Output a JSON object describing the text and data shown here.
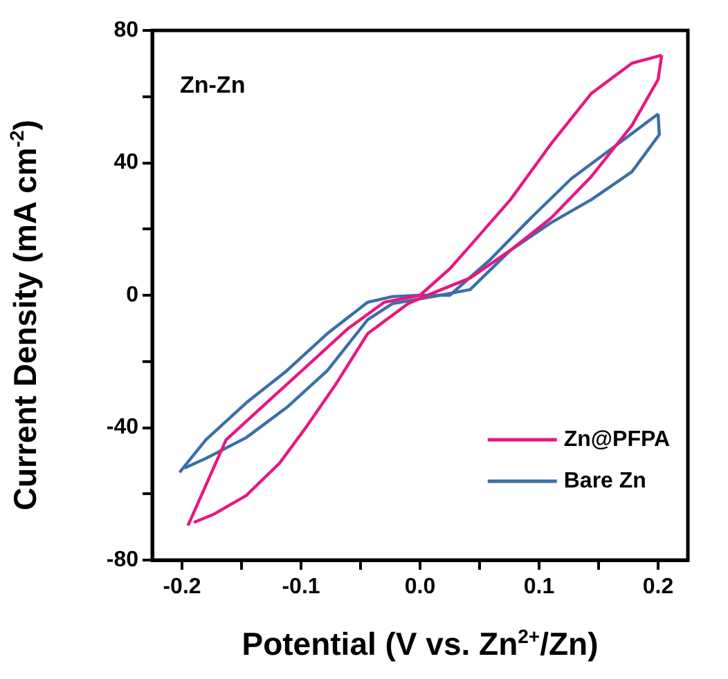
{
  "chart_data": {
    "type": "line",
    "xlabel": "Potential (V vs. Zn$^{2+}$/Zn)",
    "ylabel": "Current Density (mA cm$^{-2}$)",
    "annotations": [
      "Zn-Zn"
    ],
    "xlim": [
      -0.225,
      0.225
    ],
    "ylim": [
      -80,
      80
    ],
    "xticks": [
      -0.2,
      {
        "value": -0.15,
        "label": null
      },
      -0.1,
      {
        "value": -0.05,
        "label": null
      },
      {
        "value": 0,
        "label": "0.0"
      },
      {
        "value": 0.05,
        "label": null
      },
      0.1,
      {
        "value": 0.15,
        "label": null
      },
      0.2
    ],
    "yticks": [
      -80,
      {
        "value": -60,
        "label": null
      },
      -40,
      {
        "value": -20,
        "label": null
      },
      0,
      {
        "value": 20,
        "label": null
      },
      40,
      {
        "value": 60,
        "label": null
      },
      80
    ],
    "grid": false,
    "legend": "bottom right",
    "marker": "none",
    "line_style": "solid",
    "series": [
      {
        "name": "Zn@PFPA",
        "color": "#e8177f",
        "x": [
          -0.195,
          -0.163,
          -0.129,
          -0.095,
          -0.061,
          -0.03,
          0,
          0.025,
          0.042,
          0.076,
          0.11,
          0.144,
          0.178,
          0.203
        ],
        "values": [
          -69.6,
          -43.7,
          -32.5,
          -21.4,
          -10.2,
          -2.1,
          0,
          8,
          14.9,
          28.9,
          45.7,
          61,
          70.1,
          72.5
        ]
      },
      {
        "color": "#e8177f",
        "x": [
          0.203,
          0.2,
          0.178,
          0.144,
          0.11,
          0.076,
          0.042,
          0.011,
          -0.01,
          -0.044,
          -0.071,
          -0.095,
          -0.118,
          -0.146,
          -0.173,
          -0.19
        ],
        "values": [
          72.5,
          65.2,
          51.3,
          35.9,
          23.3,
          13.6,
          5.2,
          0.7,
          -2.5,
          -11.6,
          -27,
          -39.5,
          -50.7,
          -60.5,
          -66.1,
          -68.6
        ]
      },
      {
        "name": "Bare Zn",
        "color": "#3a6fa8",
        "x": [
          -0.202,
          -0.18,
          -0.146,
          -0.112,
          -0.078,
          -0.044,
          -0.023,
          0,
          0.025,
          0.059,
          0.093,
          0.127,
          0.161,
          0.2
        ],
        "values": [
          -53.5,
          -43.7,
          -32.5,
          -22.8,
          -11.6,
          -2.1,
          -0.4,
          0,
          0,
          10.8,
          23.3,
          35.2,
          44.3,
          54.8
        ]
      },
      {
        "color": "#3a6fa8",
        "x": [
          0.2,
          0.201,
          0.178,
          0.144,
          0.11,
          0.076,
          0.042,
          0.011,
          -0.023,
          -0.044,
          -0.078,
          -0.112,
          -0.146,
          -0.18,
          -0.198
        ],
        "values": [
          54.8,
          48.5,
          37.3,
          28.9,
          21.9,
          13.6,
          1.7,
          -0.4,
          -2.5,
          -7.4,
          -22.8,
          -33.9,
          -43,
          -49.3,
          -52.2
        ]
      }
    ]
  }
}
